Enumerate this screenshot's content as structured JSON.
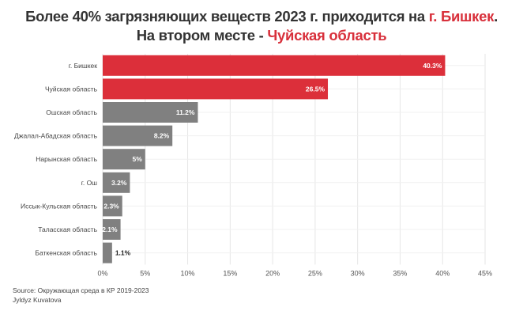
{
  "title_line1": {
    "text": "Более 40% загрязняющих веществ 2023 г. приходится на ",
    "highlight": "г. Бишкек",
    "end": "."
  },
  "title_line2": {
    "text": "На втором месте - ",
    "highlight": "Чуйская область"
  },
  "colors": {
    "highlight": "#dc2f3a",
    "default": "#808080",
    "grid": "#e6e6e6"
  },
  "chart_data": {
    "type": "bar",
    "orientation": "horizontal",
    "categories": [
      "г. Бишкек",
      "Чуйская область",
      "Ошская область",
      "Джалал-Абадская область",
      "Нарынская область",
      "г. Ош",
      "Иссык-Кульская область",
      "Таласская область",
      "Баткенская область"
    ],
    "values": [
      40.3,
      26.5,
      11.2,
      8.2,
      5,
      3.2,
      2.3,
      2.1,
      1.1
    ],
    "data_labels": [
      "40.3%",
      "26.5%",
      "11.2%",
      "8.2%",
      "5%",
      "3.2%",
      "2.3%",
      "2.1%",
      "1.1%"
    ],
    "highlighted": [
      true,
      true,
      false,
      false,
      false,
      false,
      false,
      false,
      false
    ],
    "xlim": [
      0,
      45
    ],
    "xticks": [
      "0%",
      "5%",
      "10%",
      "15%",
      "20%",
      "25%",
      "30%",
      "35%",
      "40%",
      "45%"
    ],
    "grid": true
  },
  "footer": {
    "source": "Source: Окружающая среда в КР 2019-2023",
    "author": "Jyldyz Kuvatova"
  }
}
